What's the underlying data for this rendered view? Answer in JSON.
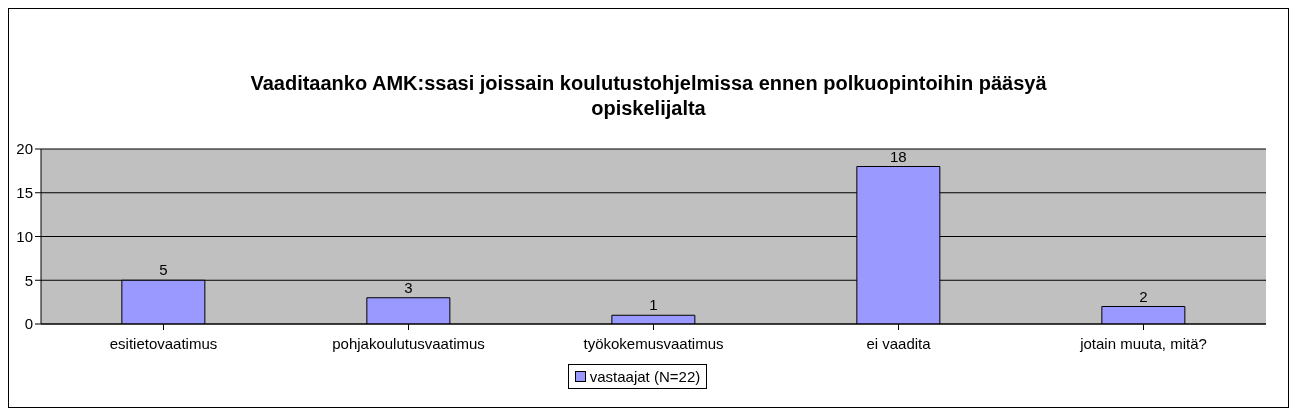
{
  "chart_data": {
    "type": "bar",
    "title": "Vaaditaanko AMK:ssasi joissain koulutustohjelmissa ennen polkuopintoihin pääsyä opiskelijalta",
    "categories": [
      "esitietovaatimus",
      "pohjakoulutusvaatimus",
      "työkokemusvaatimus",
      "ei vaadita",
      "jotain muuta, mitä?"
    ],
    "series": [
      {
        "name": "vastaajat (N=22)",
        "color": "#9999ff",
        "values": [
          5,
          3,
          1,
          18,
          2
        ]
      }
    ],
    "ylim": [
      0,
      20
    ],
    "yticks": [
      0,
      5,
      10,
      15,
      20
    ],
    "grid": "y",
    "legend": "bottom",
    "data_labels": true
  }
}
